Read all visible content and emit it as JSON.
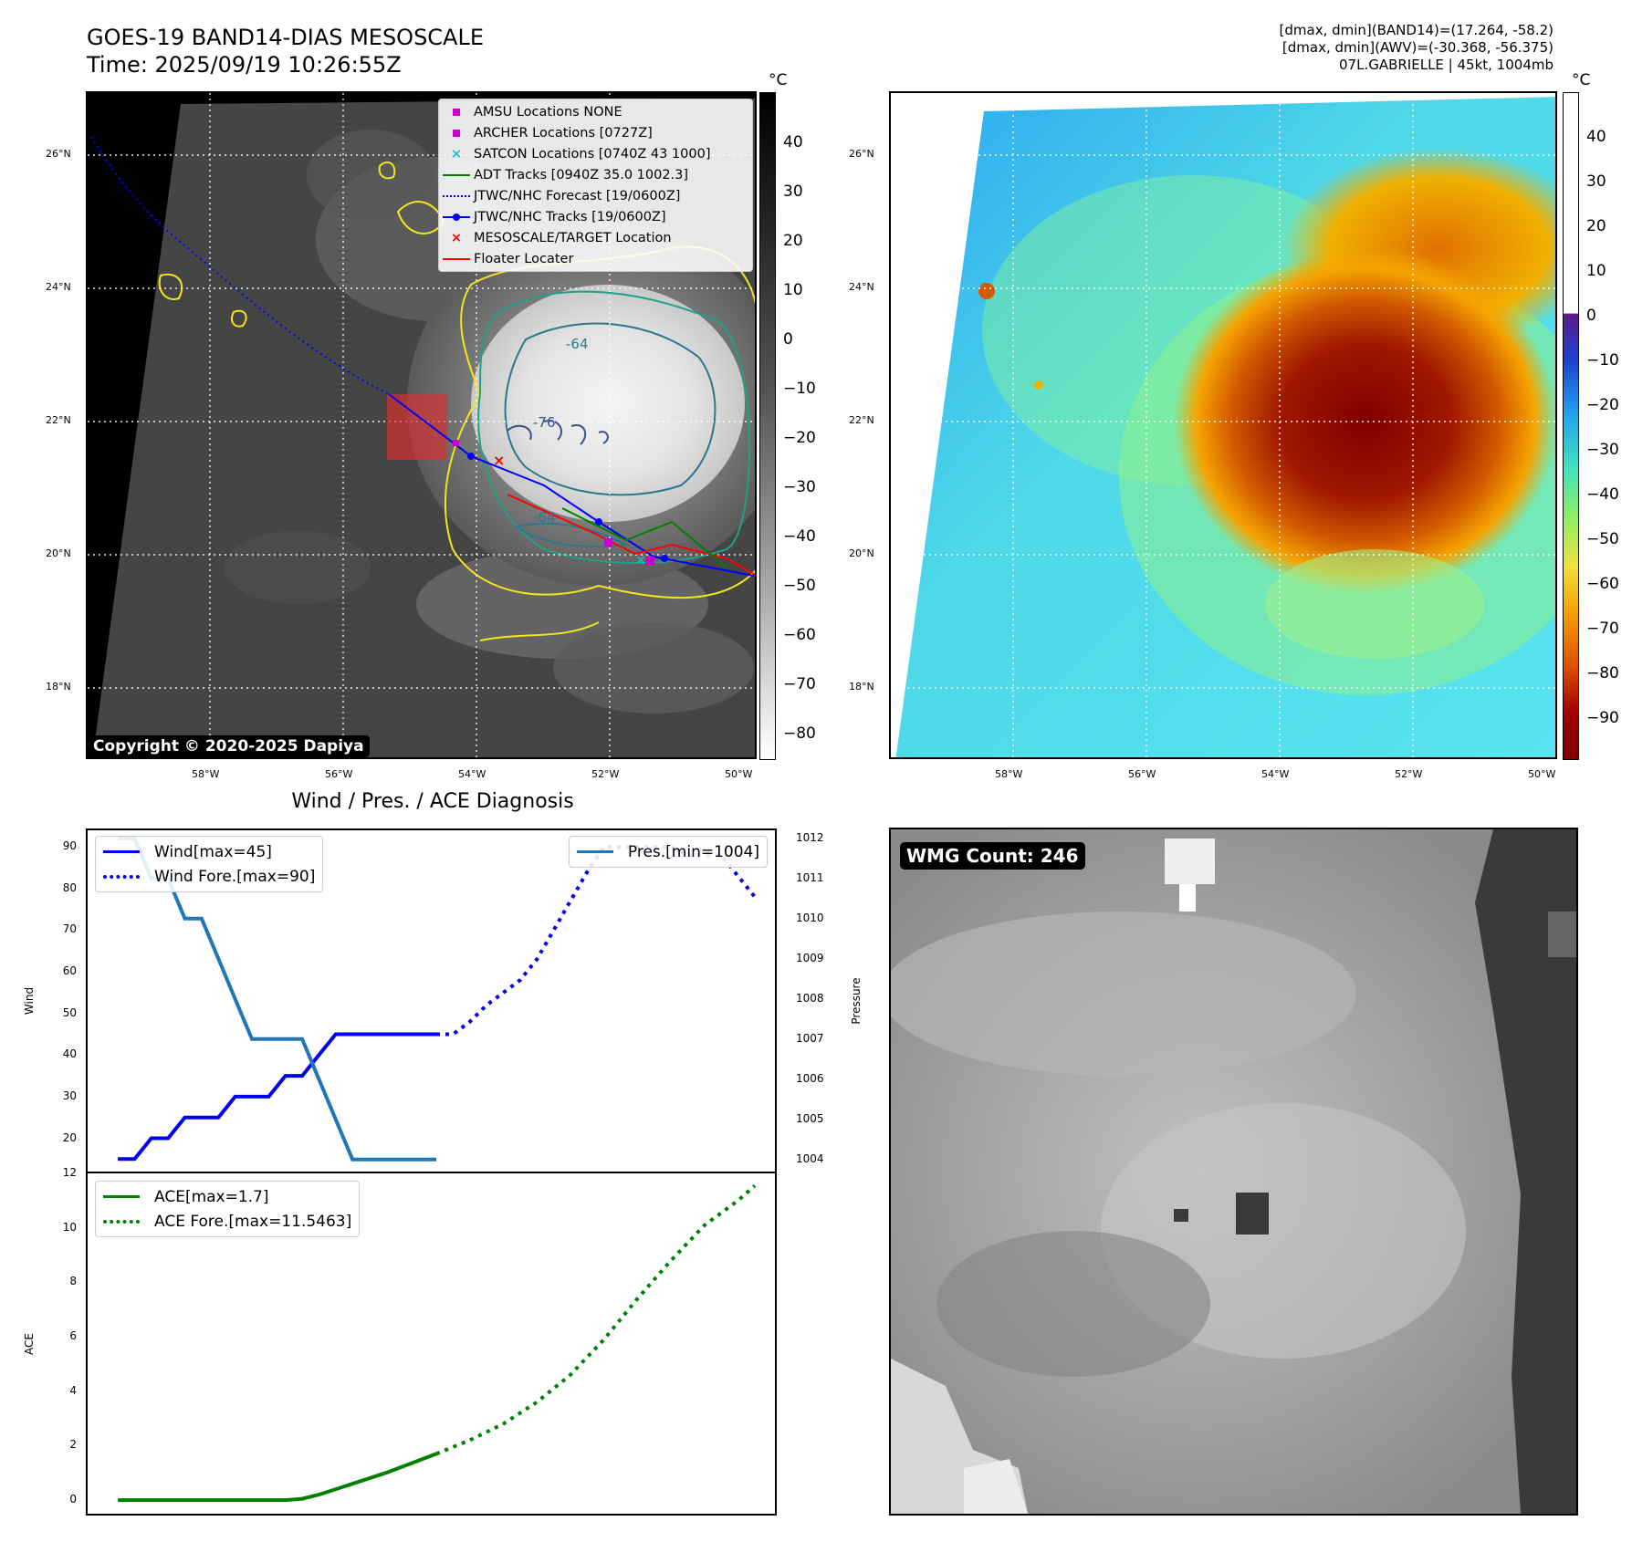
{
  "header": {
    "title_line1": "GOES-19 BAND14-DIAS MESOSCALE",
    "title_line2": "Time: 2025/09/19 10:26:55Z",
    "info_line1": "[dmax, dmin](BAND14)=(17.264, -58.2)",
    "info_line2": "[dmax, dmin](AWV)=(-30.368, -56.375)",
    "info_line3": "07L.GABRIELLE | 45kt, 1004mb"
  },
  "ir_map": {
    "lat_labels": [
      "26°N",
      "24°N",
      "22°N",
      "20°N",
      "18°N"
    ],
    "lon_labels": [
      "58°W",
      "56°W",
      "54°W",
      "52°W",
      "50°W"
    ],
    "contour_labels": [
      "-64",
      "-76",
      "-64"
    ],
    "copyright": "Copyright © 2020-2025 Dapiya",
    "legend": [
      {
        "label": "AMSU Locations NONE",
        "symbol": "square",
        "color": "#cc00cc"
      },
      {
        "label": "ARCHER Locations [0727Z]",
        "symbol": "square",
        "color": "#cc00cc"
      },
      {
        "label": "SATCON Locations [0740Z 43 1000]",
        "symbol": "x",
        "color": "#17becf"
      },
      {
        "label": "ADT Tracks [0940Z 35.0 1002.3]",
        "symbol": "line",
        "color": "#008000"
      },
      {
        "label": "JTWC/NHC Forecast [19/0600Z]",
        "symbol": "dotted",
        "color": "#0000ff"
      },
      {
        "label": "JTWC/NHC Tracks [19/0600Z]",
        "symbol": "line-dot",
        "color": "#0000ff"
      },
      {
        "label": "MESOSCALE/TARGET Location",
        "symbol": "x",
        "color": "#ff0000"
      },
      {
        "label": "Floater Locater",
        "symbol": "line",
        "color": "#ff0000"
      }
    ],
    "colorbar_unit": "°C",
    "colorbar_ticks": [
      "40",
      "30",
      "20",
      "10",
      "0",
      "−10",
      "−20",
      "−30",
      "−40",
      "−50",
      "−60",
      "−70",
      "−80"
    ]
  },
  "awv_map": {
    "lat_labels": [
      "26°N",
      "24°N",
      "22°N",
      "20°N",
      "18°N"
    ],
    "lon_labels": [
      "58°W",
      "56°W",
      "54°W",
      "52°W",
      "50°W"
    ],
    "colorbar_unit": "°C",
    "colorbar_ticks": [
      "40",
      "30",
      "20",
      "10",
      "0",
      "−10",
      "−20",
      "−30",
      "−40",
      "−50",
      "−60",
      "−70",
      "−80",
      "−90"
    ]
  },
  "diagnosis": {
    "title": "Wind / Pres. / ACE Diagnosis",
    "wind_axis_label": "Wind",
    "pressure_axis_label": "Pressure",
    "ace_axis_label": "ACE",
    "wind_ticks": [
      "90",
      "80",
      "70",
      "60",
      "50",
      "40",
      "30",
      "20"
    ],
    "pressure_ticks": [
      "1012",
      "1011",
      "1010",
      "1009",
      "1008",
      "1007",
      "1006",
      "1005",
      "1004"
    ],
    "ace_ticks": [
      "12",
      "10",
      "8",
      "6",
      "4",
      "2",
      "0"
    ],
    "legend_wind": "Wind[max=45]",
    "legend_wind_fore": "Wind Fore.[max=90]",
    "legend_pres": "Pres.[min=1004]",
    "legend_ace": "ACE[max=1.7]",
    "legend_ace_fore": "ACE Fore.[max=11.5463]"
  },
  "wmg": {
    "label": "WMG Count: 246"
  },
  "chart_data": {
    "type": "line",
    "title": "Wind / Pres. / ACE Diagnosis",
    "colors": {
      "wind": "#0000ee",
      "pressure": "#1f77b4",
      "ace": "#008000"
    },
    "wind_ylim": [
      12,
      94
    ],
    "pressure_ylim": [
      1003.7,
      1012.2
    ],
    "ace_ylim": [
      -0.5,
      12
    ],
    "series": [
      {
        "name": "Wind[max=45]",
        "axis": "wind",
        "style": "solid",
        "color": "#0000ee",
        "x": [
          0,
          1,
          2,
          3,
          4,
          5,
          6,
          7,
          8,
          9,
          10,
          11,
          12,
          13,
          14,
          15,
          16,
          17,
          18,
          19
        ],
        "values": [
          15,
          15,
          20,
          20,
          25,
          25,
          25,
          30,
          30,
          30,
          35,
          35,
          40,
          45,
          45,
          45,
          45,
          45,
          45,
          45
        ]
      },
      {
        "name": "Wind Fore.[max=90]",
        "axis": "wind",
        "style": "dotted",
        "color": "#0000ee",
        "x": [
          19,
          20,
          21,
          22,
          23,
          24,
          25,
          26,
          27,
          28,
          29,
          30,
          31,
          32,
          33,
          34,
          35,
          36,
          37,
          38
        ],
        "values": [
          45,
          45,
          48,
          52,
          55,
          58,
          63,
          70,
          77,
          84,
          90,
          90,
          90,
          90,
          90,
          88,
          88,
          88,
          83,
          78
        ]
      },
      {
        "name": "Pres.[min=1004]",
        "axis": "pressure",
        "style": "solid",
        "color": "#1f77b4",
        "x": [
          0,
          1,
          2,
          3,
          4,
          5,
          6,
          7,
          8,
          9,
          10,
          11,
          12,
          13,
          14,
          15,
          16,
          17,
          18,
          19
        ],
        "values": [
          1012,
          1012,
          1011,
          1011,
          1010,
          1010,
          1009,
          1008,
          1007,
          1007,
          1007,
          1007,
          1006,
          1005,
          1004,
          1004,
          1004,
          1004,
          1004,
          1004
        ]
      },
      {
        "name": "ACE[max=1.7]",
        "axis": "ace",
        "style": "solid",
        "color": "#008000",
        "x": [
          0,
          2,
          4,
          6,
          8,
          10,
          11,
          12,
          14,
          16,
          19
        ],
        "values": [
          0,
          0,
          0,
          0,
          0,
          0,
          0.05,
          0.2,
          0.6,
          1.0,
          1.7
        ]
      },
      {
        "name": "ACE Fore.[max=11.5463]",
        "axis": "ace",
        "style": "dotted",
        "color": "#008000",
        "x": [
          19,
          21,
          23,
          25,
          27,
          29,
          31,
          33,
          35,
          37,
          38
        ],
        "values": [
          1.7,
          2.2,
          2.8,
          3.6,
          4.6,
          5.9,
          7.4,
          8.8,
          10.1,
          11.0,
          11.5463
        ]
      }
    ]
  }
}
